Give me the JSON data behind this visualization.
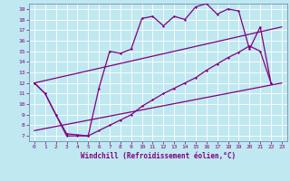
{
  "xlabel": "Windchill (Refroidissement éolien,°C)",
  "background_color": "#c0e8f0",
  "line_color": "#800080",
  "grid_color": "#a0c8d8",
  "xlim": [
    -0.5,
    23.5
  ],
  "ylim": [
    6.5,
    19.5
  ],
  "yticks": [
    7,
    8,
    9,
    10,
    11,
    12,
    13,
    14,
    15,
    16,
    17,
    18,
    19
  ],
  "xticks": [
    0,
    1,
    2,
    3,
    4,
    5,
    6,
    7,
    8,
    9,
    10,
    11,
    12,
    13,
    14,
    15,
    16,
    17,
    18,
    19,
    20,
    21,
    22,
    23
  ],
  "curve1_x": [
    0,
    1,
    2,
    3,
    4,
    5,
    6,
    7,
    8,
    9,
    10,
    11,
    12,
    13,
    14,
    15,
    16,
    17,
    18,
    19,
    20,
    21,
    22
  ],
  "curve1_y": [
    12,
    11,
    9,
    7,
    7,
    7,
    11.5,
    15,
    14.8,
    15.2,
    18.1,
    18.3,
    17.4,
    18.3,
    18.0,
    19.2,
    19.5,
    18.5,
    19.0,
    18.8,
    15.2,
    17.3,
    12.0
  ],
  "curve2_x": [
    0,
    1,
    2,
    3,
    4,
    5,
    6,
    7,
    8,
    9,
    10,
    11,
    12,
    13,
    14,
    15,
    16,
    17,
    18,
    19,
    20,
    21,
    22
  ],
  "curve2_y": [
    12,
    11,
    9,
    7.2,
    7.1,
    7.0,
    7.5,
    8.0,
    8.5,
    9.0,
    9.8,
    10.4,
    11.0,
    11.5,
    12.0,
    12.5,
    13.2,
    13.8,
    14.4,
    14.9,
    15.5,
    15.0,
    12.0
  ],
  "line3_x": [
    0,
    23
  ],
  "line3_y": [
    7.5,
    12.0
  ],
  "line4_x": [
    0,
    23
  ],
  "line4_y": [
    12.0,
    17.3
  ]
}
